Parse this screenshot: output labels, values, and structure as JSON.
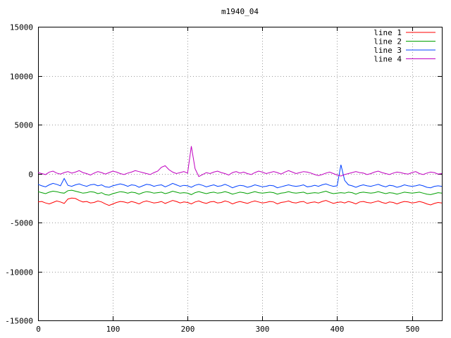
{
  "title": "m1940_04",
  "chart_data": {
    "type": "line",
    "title": "m1940_04",
    "xlabel": "",
    "ylabel": "",
    "xlim": [
      0,
      540
    ],
    "ylim": [
      -15000,
      15000
    ],
    "xticks": [
      0,
      100,
      200,
      300,
      400,
      500
    ],
    "yticks": [
      -15000,
      -10000,
      -5000,
      0,
      5000,
      10000,
      15000
    ],
    "grid": true,
    "grid_style": "dotted",
    "legend_position": "top-right-inside",
    "x_start": 0,
    "x_step": 5,
    "series": [
      {
        "name": "line 1",
        "color": "#ff0000",
        "values": [
          -2900,
          -2850,
          -3000,
          -3100,
          -2950,
          -2800,
          -2900,
          -3050,
          -2600,
          -2500,
          -2550,
          -2750,
          -2900,
          -2850,
          -3000,
          -2950,
          -2800,
          -2900,
          -3100,
          -3250,
          -3100,
          -2950,
          -2850,
          -2900,
          -3000,
          -2850,
          -2950,
          -3100,
          -2900,
          -2800,
          -2900,
          -3000,
          -2950,
          -2850,
          -3050,
          -2900,
          -2750,
          -2850,
          -3000,
          -2900,
          -2950,
          -3100,
          -2900,
          -2800,
          -2950,
          -3050,
          -2900,
          -2850,
          -3000,
          -2950,
          -2800,
          -2900,
          -3100,
          -2950,
          -2850,
          -2950,
          -3050,
          -2900,
          -2800,
          -2900,
          -3000,
          -2950,
          -2850,
          -2900,
          -3100,
          -2950,
          -2900,
          -2800,
          -2950,
          -3000,
          -2900,
          -2850,
          -3050,
          -2950,
          -2900,
          -3000,
          -2850,
          -2750,
          -2900,
          -3050,
          -2950,
          -2900,
          -3000,
          -2850,
          -2950,
          -3100,
          -2900,
          -2850,
          -2950,
          -3000,
          -2900,
          -2800,
          -2950,
          -3050,
          -2900,
          -2950,
          -3100,
          -2950,
          -2850,
          -2900,
          -3000,
          -2950,
          -2850,
          -2950,
          -3100,
          -3200,
          -3050,
          -2950,
          -3000
        ]
      },
      {
        "name": "line 2",
        "color": "#00a000",
        "values": [
          -1850,
          -1950,
          -2050,
          -1900,
          -1800,
          -1850,
          -1950,
          -2000,
          -1750,
          -1700,
          -1800,
          -1900,
          -2000,
          -1950,
          -1850,
          -1900,
          -2050,
          -1950,
          -2150,
          -2200,
          -2050,
          -1950,
          -1850,
          -1900,
          -2000,
          -1900,
          -1950,
          -2100,
          -1950,
          -1850,
          -1900,
          -2000,
          -1950,
          -1900,
          -2050,
          -1950,
          -1800,
          -1900,
          -2000,
          -1950,
          -2000,
          -2150,
          -1950,
          -1850,
          -1950,
          -2050,
          -1950,
          -1900,
          -2000,
          -1950,
          -1850,
          -1950,
          -2100,
          -2000,
          -1900,
          -1950,
          -2050,
          -1950,
          -1850,
          -1950,
          -2000,
          -1950,
          -1900,
          -1950,
          -2100,
          -2000,
          -1950,
          -1850,
          -1950,
          -2000,
          -1950,
          -1900,
          -2050,
          -2000,
          -1950,
          -2000,
          -1900,
          -1800,
          -1950,
          -2050,
          -2000,
          -1950,
          -2000,
          -1900,
          -1950,
          -2100,
          -1950,
          -1900,
          -1950,
          -2000,
          -1950,
          -1850,
          -1950,
          -2050,
          -1950,
          -2000,
          -2100,
          -2000,
          -1900,
          -1950,
          -2000,
          -1950,
          -1900,
          -2000,
          -2100,
          -2150,
          -2050,
          -1950,
          -2000
        ]
      },
      {
        "name": "line 3",
        "color": "#0040ff",
        "values": [
          -1100,
          -1250,
          -1350,
          -1150,
          -1000,
          -1100,
          -1250,
          -500,
          -1200,
          -1300,
          -1150,
          -1050,
          -1200,
          -1300,
          -1150,
          -1100,
          -1250,
          -1150,
          -1350,
          -1400,
          -1250,
          -1150,
          -1050,
          -1150,
          -1300,
          -1150,
          -1200,
          -1400,
          -1250,
          -1100,
          -1150,
          -1300,
          -1200,
          -1150,
          -1350,
          -1200,
          -1000,
          -1150,
          -1300,
          -1200,
          -1250,
          -1400,
          -1200,
          -1100,
          -1200,
          -1350,
          -1250,
          -1150,
          -1300,
          -1250,
          -1100,
          -1250,
          -1450,
          -1300,
          -1200,
          -1250,
          -1400,
          -1300,
          -1150,
          -1250,
          -1350,
          -1300,
          -1200,
          -1250,
          -1450,
          -1350,
          -1250,
          -1150,
          -1250,
          -1300,
          -1250,
          -1150,
          -1350,
          -1300,
          -1200,
          -1300,
          -1150,
          -1050,
          -1200,
          -1300,
          -1250,
          900,
          -700,
          -1150,
          -1250,
          -1400,
          -1250,
          -1150,
          -1250,
          -1300,
          -1200,
          -1100,
          -1250,
          -1350,
          -1200,
          -1250,
          -1400,
          -1300,
          -1150,
          -1250,
          -1300,
          -1250,
          -1150,
          -1250,
          -1400,
          -1450,
          -1300,
          -1250,
          -1300
        ]
      },
      {
        "name": "line 4",
        "color": "#c000c0",
        "values": [
          100,
          0,
          -100,
          150,
          250,
          50,
          -50,
          100,
          200,
          50,
          150,
          300,
          100,
          0,
          -150,
          50,
          200,
          100,
          -50,
          100,
          250,
          150,
          0,
          -100,
          50,
          150,
          300,
          200,
          100,
          0,
          -100,
          100,
          250,
          650,
          800,
          400,
          150,
          0,
          100,
          200,
          50,
          2800,
          500,
          -300,
          -100,
          100,
          0,
          150,
          250,
          100,
          0,
          -150,
          100,
          200,
          50,
          150,
          0,
          -100,
          100,
          250,
          150,
          0,
          100,
          200,
          100,
          -50,
          150,
          300,
          150,
          0,
          100,
          200,
          150,
          50,
          -100,
          -200,
          -100,
          50,
          150,
          0,
          -150,
          -250,
          -100,
          0,
          100,
          200,
          100,
          50,
          -100,
          0,
          150,
          250,
          100,
          0,
          -100,
          50,
          150,
          100,
          0,
          -50,
          100,
          200,
          0,
          -100,
          50,
          150,
          100,
          -50,
          0
        ]
      }
    ]
  },
  "legend": {
    "entries": [
      "line 1",
      "line 2",
      "line 3",
      "line 4"
    ]
  }
}
